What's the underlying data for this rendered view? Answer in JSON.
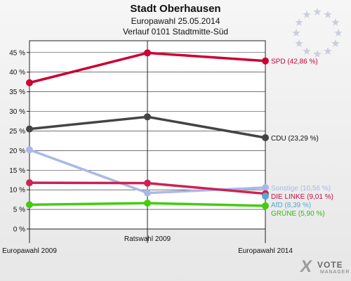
{
  "header": {
    "title": "Stadt Oberhausen",
    "subtitle": "Europawahl 25.05.2014",
    "subtitle2": "Verlauf 0101 Stadtmitte-Süd"
  },
  "chart_data": {
    "type": "line",
    "categories": [
      "Europawahl 2009",
      "Ratswahl 2009",
      "Europawahl 2014"
    ],
    "ylim": [
      0,
      48
    ],
    "yticks": [
      0,
      5,
      10,
      15,
      20,
      25,
      30,
      35,
      40,
      45
    ],
    "ytick_labels": [
      "0 %",
      "5 %",
      "10 %",
      "15 %",
      "20 %",
      "25 %",
      "30 %",
      "35 %",
      "40 %",
      "45 %"
    ],
    "grid": true,
    "series": [
      {
        "name": "SPD",
        "end_label": "SPD (42,86 %)",
        "color": "#cc0033",
        "label_color": "#cc0033",
        "values": [
          37.3,
          44.9,
          42.86
        ]
      },
      {
        "name": "CDU",
        "end_label": "CDU (23,29 %)",
        "color": "#444444",
        "label_color": "#111111",
        "values": [
          25.5,
          28.6,
          23.29
        ]
      },
      {
        "name": "Sonstige",
        "end_label": "Sonstige (10,56 %)",
        "color": "#aab8e8",
        "label_color": "#aab8e8",
        "values": [
          20.2,
          9.2,
          10.56
        ]
      },
      {
        "name": "DIE LINKE",
        "end_label": "DIE LINKE (9,01 %)",
        "color": "#cc2255",
        "label_color": "#bb1144",
        "values": [
          11.8,
          11.7,
          9.01
        ]
      },
      {
        "name": "AfD",
        "end_label": "AfD (8,39 %)",
        "color": "#55aacc",
        "label_color": "#55aacc",
        "values": [
          null,
          null,
          8.39
        ]
      },
      {
        "name": "GRÜNE",
        "end_label": "GRÜNE (5,90 %)",
        "color": "#44cc11",
        "label_color": "#33bb11",
        "values": [
          6.2,
          6.6,
          5.9
        ]
      }
    ]
  },
  "brand": {
    "mark": "X",
    "word1": "VOTE",
    "word2": "MANAGER"
  }
}
